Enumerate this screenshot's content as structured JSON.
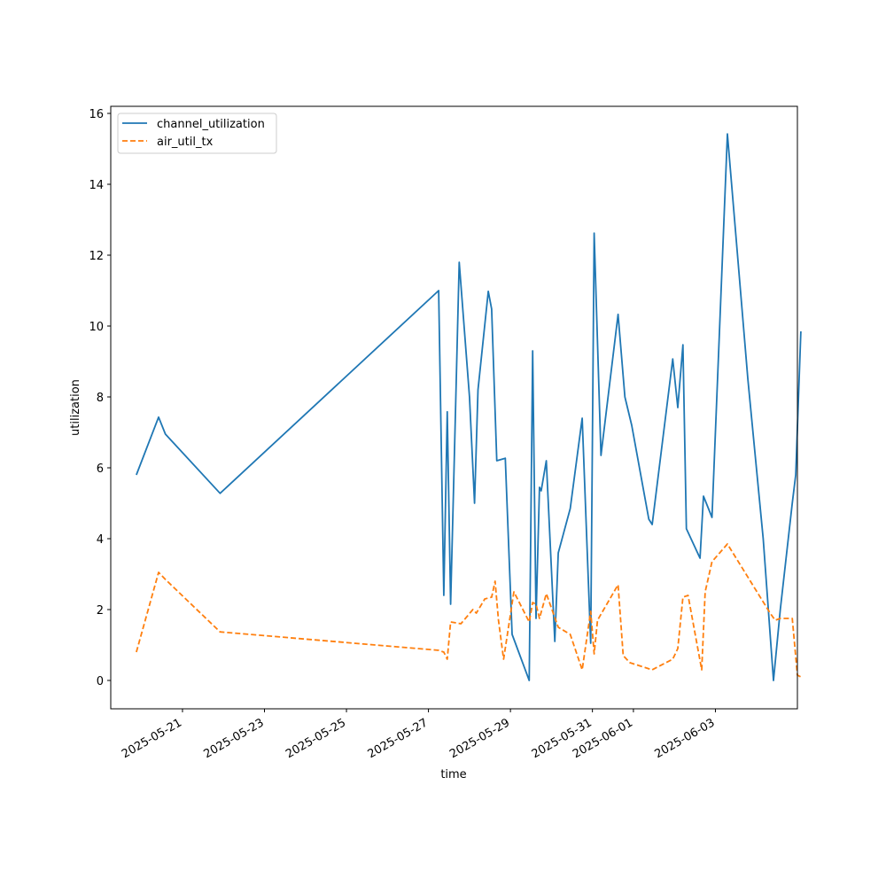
{
  "chart_data": {
    "type": "line",
    "xlabel": "time",
    "ylabel": "utilization",
    "x_axis_type": "date",
    "xlim": [
      "2025-05-19T06:00",
      "2025-06-05T00:00"
    ],
    "ylim": [
      -0.8,
      16.2
    ],
    "x_ticks": [
      "2025-05-21",
      "2025-05-23",
      "2025-05-25",
      "2025-05-27",
      "2025-05-29",
      "2025-05-31",
      "2025-06-01",
      "2025-06-03"
    ],
    "y_ticks": [
      0,
      2,
      4,
      6,
      8,
      10,
      12,
      14,
      16
    ],
    "grid": false,
    "legend": {
      "position": "upper-left"
    },
    "series": [
      {
        "name": "channel_utilization",
        "color": "#1f77b4",
        "style": "solid",
        "points": [
          [
            "2025-05-19T21:00",
            5.8
          ],
          [
            "2025-05-20T10:00",
            7.43
          ],
          [
            "2025-05-20T14:00",
            6.95
          ],
          [
            "2025-05-21T22:00",
            5.28
          ],
          [
            "2025-05-27T06:00",
            11.0
          ],
          [
            "2025-05-27T09:00",
            2.4
          ],
          [
            "2025-05-27T11:00",
            7.58
          ],
          [
            "2025-05-27T13:00",
            2.15
          ],
          [
            "2025-05-27T16:00",
            7.9
          ],
          [
            "2025-05-27T18:00",
            11.8
          ],
          [
            "2025-05-28T00:00",
            8.0
          ],
          [
            "2025-05-28T03:00",
            5.0
          ],
          [
            "2025-05-28T05:00",
            8.2
          ],
          [
            "2025-05-28T11:00",
            10.98
          ],
          [
            "2025-05-28T13:00",
            10.48
          ],
          [
            "2025-05-28T16:00",
            6.2
          ],
          [
            "2025-05-28T21:00",
            6.27
          ],
          [
            "2025-05-29T01:00",
            1.3
          ],
          [
            "2025-05-29T11:00",
            0.0
          ],
          [
            "2025-05-29T13:00",
            9.3
          ],
          [
            "2025-05-29T15:00",
            1.75
          ],
          [
            "2025-05-29T17:00",
            5.45
          ],
          [
            "2025-05-29T18:00",
            5.35
          ],
          [
            "2025-05-29T21:00",
            6.2
          ],
          [
            "2025-05-30T02:00",
            1.1
          ],
          [
            "2025-05-30T04:00",
            3.6
          ],
          [
            "2025-05-30T11:00",
            4.85
          ],
          [
            "2025-05-30T18:00",
            7.4
          ],
          [
            "2025-05-30T23:00",
            1.05
          ],
          [
            "2025-05-31T01:00",
            12.62
          ],
          [
            "2025-05-31T05:00",
            6.35
          ],
          [
            "2025-05-31T15:00",
            10.33
          ],
          [
            "2025-05-31T19:00",
            8.0
          ],
          [
            "2025-05-31T23:00",
            7.2
          ],
          [
            "2025-06-01T09:00",
            4.55
          ],
          [
            "2025-06-01T11:00",
            4.4
          ],
          [
            "2025-06-01T23:00",
            9.07
          ],
          [
            "2025-06-02T02:00",
            7.7
          ],
          [
            "2025-06-02T05:00",
            9.47
          ],
          [
            "2025-06-02T07:00",
            4.28
          ],
          [
            "2025-06-02T15:00",
            3.45
          ],
          [
            "2025-06-02T17:00",
            5.2
          ],
          [
            "2025-06-02T22:00",
            4.6
          ],
          [
            "2025-06-03T07:00",
            15.42
          ],
          [
            "2025-06-03T19:00",
            8.5
          ],
          [
            "2025-06-04T04:00",
            4.0
          ],
          [
            "2025-06-04T10:00",
            0.0
          ],
          [
            "2025-06-04T14:00",
            2.0
          ],
          [
            "2025-06-04T21:00",
            5.0
          ],
          [
            "2025-06-04T23:00",
            5.8
          ],
          [
            "2025-06-05T02:00",
            9.85
          ]
        ]
      },
      {
        "name": "air_util_tx",
        "color": "#ff7f0e",
        "style": "dashed",
        "points": [
          [
            "2025-05-19T21:00",
            0.8
          ],
          [
            "2025-05-20T10:00",
            3.05
          ],
          [
            "2025-05-20T14:00",
            2.85
          ],
          [
            "2025-05-21T22:00",
            1.37
          ],
          [
            "2025-05-27T06:00",
            0.85
          ],
          [
            "2025-05-27T09:00",
            0.8
          ],
          [
            "2025-05-27T11:00",
            0.6
          ],
          [
            "2025-05-27T13:00",
            1.65
          ],
          [
            "2025-05-27T19:00",
            1.6
          ],
          [
            "2025-05-28T02:00",
            2.0
          ],
          [
            "2025-05-28T04:00",
            1.9
          ],
          [
            "2025-05-28T09:00",
            2.3
          ],
          [
            "2025-05-28T13:00",
            2.35
          ],
          [
            "2025-05-28T15:00",
            2.8
          ],
          [
            "2025-05-28T17:00",
            1.7
          ],
          [
            "2025-05-28T20:00",
            0.6
          ],
          [
            "2025-05-29T02:00",
            2.5
          ],
          [
            "2025-05-29T11:00",
            1.65
          ],
          [
            "2025-05-29T13:00",
            2.2
          ],
          [
            "2025-05-29T15:00",
            2.15
          ],
          [
            "2025-05-29T17:00",
            1.75
          ],
          [
            "2025-05-29T21:00",
            2.45
          ],
          [
            "2025-05-30T04:00",
            1.5
          ],
          [
            "2025-05-30T11:00",
            1.3
          ],
          [
            "2025-05-30T18:00",
            0.3
          ],
          [
            "2025-05-30T23:00",
            1.95
          ],
          [
            "2025-05-31T01:00",
            0.75
          ],
          [
            "2025-05-31T03:00",
            1.7
          ],
          [
            "2025-05-31T15:00",
            2.7
          ],
          [
            "2025-05-31T18:00",
            0.7
          ],
          [
            "2025-05-31T22:00",
            0.5
          ],
          [
            "2025-06-01T11:00",
            0.3
          ],
          [
            "2025-06-01T23:00",
            0.6
          ],
          [
            "2025-06-02T02:00",
            0.9
          ],
          [
            "2025-06-02T05:00",
            2.35
          ],
          [
            "2025-06-02T08:00",
            2.4
          ],
          [
            "2025-06-02T16:00",
            0.3
          ],
          [
            "2025-06-02T18:00",
            2.5
          ],
          [
            "2025-06-02T22:00",
            3.35
          ],
          [
            "2025-06-03T07:00",
            3.85
          ],
          [
            "2025-06-04T08:00",
            1.9
          ],
          [
            "2025-06-04T11:00",
            1.7
          ],
          [
            "2025-06-04T14:00",
            1.75
          ],
          [
            "2025-06-04T21:00",
            1.75
          ],
          [
            "2025-06-05T00:00",
            0.15
          ],
          [
            "2025-06-05T02:00",
            0.1
          ]
        ]
      }
    ]
  }
}
